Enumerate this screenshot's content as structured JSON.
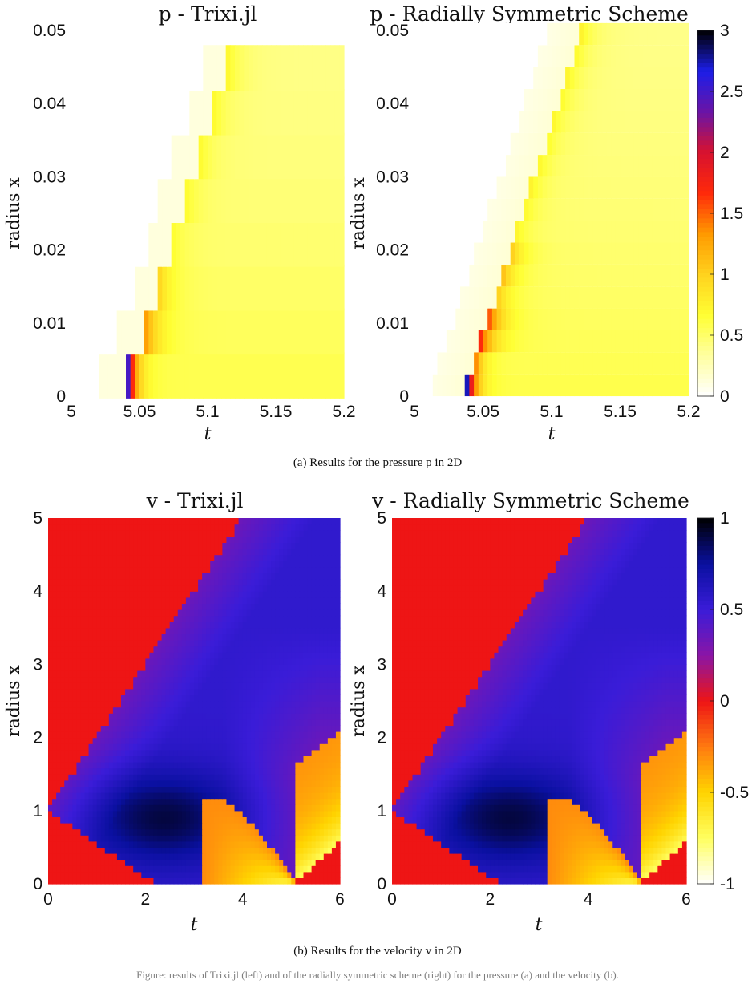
{
  "figure": {
    "caption_a": "(a)  Results for the pressure p in 2D",
    "caption_b": "(b)  Results for the velocity v in 2D",
    "footer_text": "Figure: results of Trixi.jl (left) and of the radially symmetric scheme (right) for the pressure (a) and the velocity (b)."
  },
  "colormaps": {
    "pressure": [
      "#ffffff",
      "#ffffa0",
      "#ffff33",
      "#ffd21e",
      "#ff9a00",
      "#ff2a0a",
      "#d8122e",
      "#6a14a6",
      "#1c1ee8",
      "#000000"
    ],
    "velocity": [
      "#ffffff",
      "#ffff60",
      "#ffd400",
      "#ff7a10",
      "#ee1515",
      "#8a15a6",
      "#3a1cd8",
      "#0a10a0",
      "#000000"
    ]
  },
  "chart_data": [
    {
      "id": "p-trixi",
      "type": "heatmap",
      "title": "p - Trixi.jl",
      "xlabel": "t",
      "ylabel": "radius x",
      "xlim": [
        5,
        5.2
      ],
      "ylim": [
        0,
        0.05
      ],
      "xticks": [
        "5",
        "5.05",
        "5.1",
        "5.15",
        "5.2"
      ],
      "yticks": [
        "0",
        "0.01",
        "0.02",
        "0.03",
        "0.04",
        "0.05"
      ],
      "field": "pressure",
      "cell_dr": 0.006,
      "shock_front_t": [
        5.04,
        5.055,
        5.065,
        5.075,
        5.085,
        5.095,
        5.105,
        5.115,
        5.125
      ]
    },
    {
      "id": "p-radial",
      "type": "heatmap",
      "title": "p - Radially Symmetric Scheme",
      "xlabel": "t",
      "ylabel": "radius x",
      "xlim": [
        5,
        5.2
      ],
      "ylim": [
        0,
        0.05
      ],
      "xticks": [
        "5",
        "5.05",
        "5.1",
        "5.15",
        "5.2"
      ],
      "yticks": [
        "0",
        "0.01",
        "0.02",
        "0.03",
        "0.04",
        "0.05"
      ],
      "field": "pressure",
      "cell_dr": 0.003,
      "colorbar": {
        "range": [
          0,
          3
        ],
        "ticks": [
          "0",
          "0.5",
          "1",
          "1.5",
          "2",
          "2.5",
          "3"
        ]
      }
    },
    {
      "id": "v-trixi",
      "type": "heatmap",
      "title": "v - Trixi.jl",
      "xlabel": "t",
      "ylabel": "radius x",
      "xlim": [
        0,
        6
      ],
      "ylim": [
        0,
        5
      ],
      "xticks": [
        "0",
        "2",
        "4",
        "6"
      ],
      "yticks": [
        "0",
        "1",
        "2",
        "3",
        "4",
        "5"
      ],
      "field": "velocity"
    },
    {
      "id": "v-radial",
      "type": "heatmap",
      "title": "v - Radially Symmetric Scheme",
      "xlabel": "t",
      "ylabel": "radius x",
      "xlim": [
        0,
        6
      ],
      "ylim": [
        0,
        5
      ],
      "xticks": [
        "0",
        "2",
        "4",
        "6"
      ],
      "yticks": [
        "0",
        "1",
        "2",
        "3",
        "4",
        "5"
      ],
      "field": "velocity",
      "colorbar": {
        "range": [
          -1,
          1
        ],
        "ticks": [
          "-1",
          "-0.5",
          "0",
          "0.5",
          "1"
        ]
      }
    }
  ]
}
